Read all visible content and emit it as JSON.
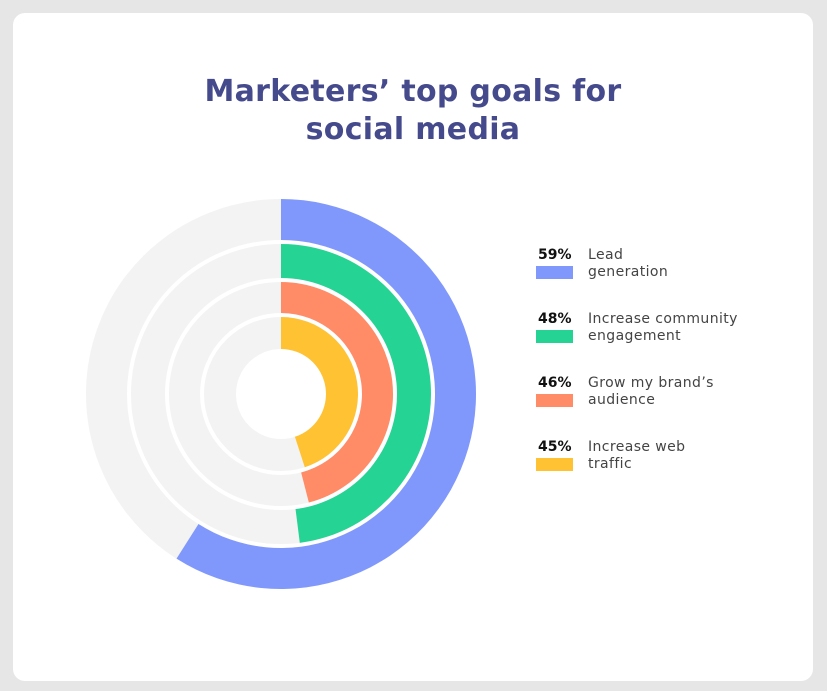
{
  "chart_data": {
    "type": "radial-bar",
    "title_lines": [
      "Marketers’ top goals for",
      "social media"
    ],
    "max_value": 100,
    "series": [
      {
        "name_lines": [
          "Lead",
          "generation"
        ],
        "value": 59,
        "label": "59%",
        "color": "#8098fc"
      },
      {
        "name_lines": [
          "Increase community",
          "engagement"
        ],
        "value": 48,
        "label": "48%",
        "color": "#25d494"
      },
      {
        "name_lines": [
          "Grow my brand’s",
          "audience"
        ],
        "value": 46,
        "label": "46%",
        "color": "#ff8c66"
      },
      {
        "name_lines": [
          "Increase web",
          "traffic"
        ],
        "value": 45,
        "label": "45%",
        "color": "#ffc233"
      }
    ],
    "track_color": "#f3f3f3"
  }
}
